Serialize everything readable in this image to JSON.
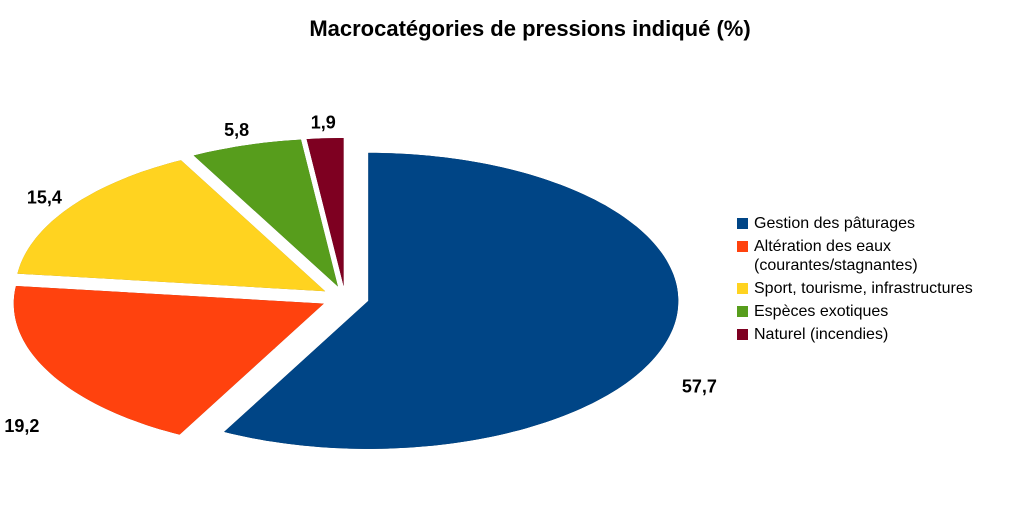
{
  "chart_data": {
    "type": "pie",
    "title": "Macrocatégories de pressions indiqué (%)",
    "categories": [
      "Gestion des pâturages",
      "Altération des eaux (courantes/stagnantes)",
      "Sport, tourisme, infrastructures",
      "Espèces exotiques",
      "Naturel (incendies)"
    ],
    "values": [
      57.7,
      19.2,
      15.4,
      5.8,
      1.9
    ],
    "value_labels": [
      "57,7",
      "19,2",
      "15,4",
      "5,8",
      "1,9"
    ],
    "colors": [
      "#004586",
      "#ff420e",
      "#ffd320",
      "#579d1c",
      "#7e0021"
    ],
    "legend": "right"
  }
}
